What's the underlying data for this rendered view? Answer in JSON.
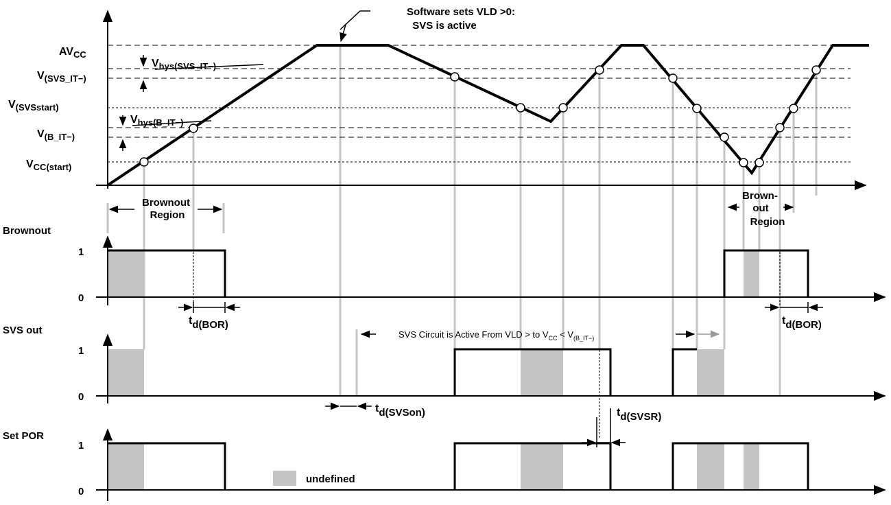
{
  "annotations": {
    "software_sets_line1": "Software sets VLD >0:",
    "software_sets_line2": "SVS is active",
    "brownout_region_left_line1": "Brownout",
    "brownout_region_left_line2": "Region",
    "brownout_region_right_line1": "Brown-",
    "brownout_region_right_line2": "out",
    "brownout_region_right_line3": "Region",
    "svs_active_prefix": "SVS Circuit is Active From VLD > to V",
    "svs_active_cc": "CC",
    "svs_active_mid": " < V",
    "svs_active_sub": "(B_IT−)",
    "legend_undefined": "undefined"
  },
  "voltage_levels": {
    "avcc_main": "AV",
    "avcc_sub": "CC",
    "vsvs_it": "V",
    "vsvs_it_sub": "(SVS_IT−)",
    "vsvs_start": "V",
    "vsvs_start_sub": "(SVSstart)",
    "vb_it": "V",
    "vb_it_sub": "(B_IT−)",
    "vcc_start": "V",
    "vcc_start_sub": "CC(start)",
    "vhys_svs": "V",
    "vhys_svs_sub": "hys(SVS_IT−)",
    "vhys_b": "V",
    "vhys_b_sub": "hys(B_IT−)"
  },
  "signals": {
    "brownout": "Brownout",
    "svs_out": "SVS out",
    "set_por": "Set POR",
    "level_1": "1",
    "level_0": "0"
  },
  "timing": {
    "t": "t",
    "bor_sub": "d(BOR)",
    "svson_sub": "d(SVSon)",
    "svsr_sub": "d(SVSR)"
  },
  "colors": {
    "undefined_fill": "#c4c4c4",
    "marker_line": "#c4c4c4",
    "waveform": "#000000"
  }
}
